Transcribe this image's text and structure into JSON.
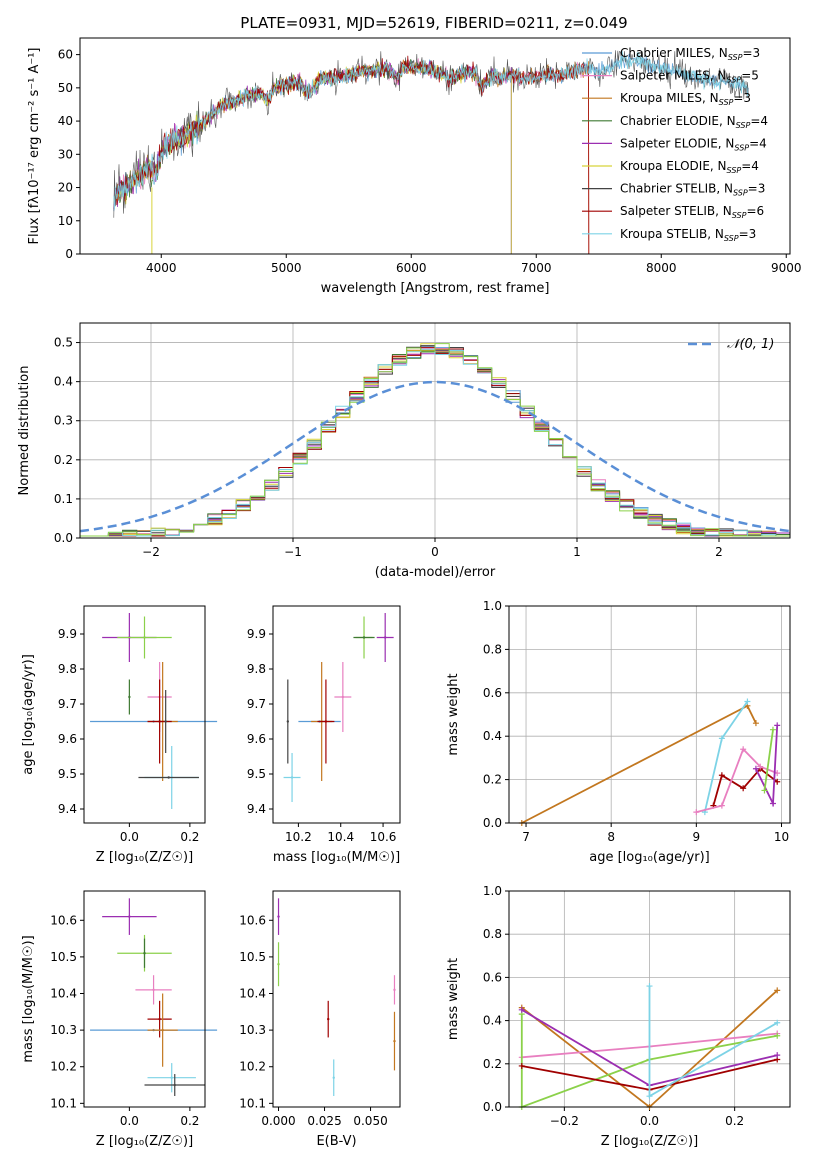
{
  "figure_title": "PLATE=0931, MJD=52619, FIBERID=0211, z=0.049",
  "palette": [
    "#5a9bd5",
    "#e87fc0",
    "#c2771f",
    "#3f7a33",
    "#9b2eb1",
    "#d8d33a",
    "#444444",
    "#a00000",
    "#7dd3e6",
    "#8bd14a"
  ],
  "chart_data": [
    {
      "type": "line",
      "title": "PLATE=0931, MJD=52619, FIBERID=0211, z=0.049",
      "xlabel": "wavelength [Angstrom, rest frame]",
      "ylabel": "Flux [fλ10⁻¹⁷ erg cm⁻² s⁻¹ A⁻¹]",
      "xlim": [
        3350,
        9030
      ],
      "ylim": [
        0,
        65
      ],
      "xticks": [
        4000,
        5000,
        6000,
        7000,
        8000,
        9000
      ],
      "yticks": [
        0,
        10,
        20,
        30,
        40,
        50,
        60
      ],
      "grid": false,
      "legend_position": "right",
      "spectrum_anchor": {
        "wavelength": [
          3620,
          3700,
          3800,
          3900,
          3960,
          4000,
          4100,
          4200,
          4300,
          4400,
          4500,
          4600,
          4700,
          4800,
          4860,
          4900,
          5000,
          5100,
          5175,
          5250,
          5300,
          5400,
          5500,
          5600,
          5700,
          5800,
          5893,
          5950,
          6000,
          6100,
          6200,
          6300,
          6400,
          6500,
          6563,
          6650,
          6700,
          6800,
          6900,
          7000,
          7100,
          7200,
          7300,
          7400,
          7500,
          7600,
          7700,
          7800,
          7900,
          8000,
          8100,
          8200,
          8300,
          8400,
          8500,
          8600,
          8700
        ],
        "flux": [
          17,
          20,
          23,
          26,
          24,
          31,
          34,
          36,
          38,
          42,
          45,
          46,
          48,
          48,
          46,
          50,
          51,
          52,
          48,
          52,
          53,
          53,
          54,
          55,
          55,
          56,
          53,
          57,
          56,
          56,
          55,
          53,
          54,
          55,
          50,
          54,
          53,
          54,
          53,
          53,
          54,
          54,
          55,
          56,
          55,
          56,
          59,
          58,
          57,
          56,
          55,
          54,
          53,
          52,
          52,
          51,
          50
        ]
      },
      "series": [
        {
          "name": "Chabrier MILES, N_SSP=3",
          "cutoff": 9000
        },
        {
          "name": "Salpeter MILES, N_SSP=5",
          "cutoff": 7420
        },
        {
          "name": "Kroupa MILES, N_SSP=3",
          "cutoff": 7420
        },
        {
          "name": "Chabrier ELODIE, N_SSP=4",
          "cutoff": 6800
        },
        {
          "name": "Salpeter ELODIE, N_SSP=4",
          "cutoff": 6800
        },
        {
          "name": "Kroupa ELODIE, N_SSP=4",
          "cutoff": 6800
        },
        {
          "name": "Chabrier STELIB, N_SSP=3",
          "cutoff": 9000
        },
        {
          "name": "Salpeter STELIB, N_SSP=6",
          "cutoff": 7420
        },
        {
          "name": "Kroupa STELIB, N_SSP=3",
          "cutoff": 9000
        }
      ]
    },
    {
      "type": "histogram",
      "xlabel": "(data-model)/error",
      "ylabel": "Normed distribution",
      "xlim": [
        -2.5,
        2.5
      ],
      "ylim": [
        0,
        0.55
      ],
      "xticks": [
        -2,
        -1,
        0,
        1,
        2
      ],
      "yticks": [
        0.0,
        0.1,
        0.2,
        0.3,
        0.4,
        0.5
      ],
      "grid": true,
      "bin_width": 0.1,
      "legend": "𝒩(0, 1)",
      "legend_position": "top-right"
    },
    {
      "type": "scatter",
      "xlabel": "Z [log₁₀(Z/Z☉)]",
      "ylabel": "age  [log₁₀(age/yr)]",
      "xlim": [
        -0.15,
        0.25
      ],
      "ylim": [
        9.36,
        9.98
      ],
      "xticks": [
        "0.0",
        "0.2"
      ],
      "xtick_values": [
        0.0,
        0.2
      ],
      "yticks": [
        "9.4",
        "9.5",
        "9.6",
        "9.7",
        "9.8",
        "9.9"
      ],
      "ytick_values": [
        9.4,
        9.5,
        9.6,
        9.7,
        9.8,
        9.9
      ],
      "grid": false,
      "points": [
        {
          "x": 0.0,
          "y": 9.89,
          "xerr": 0.09,
          "yerr": 0.07,
          "color": 4
        },
        {
          "x": 0.05,
          "y": 9.89,
          "xerr": 0.09,
          "yerr": 0.06,
          "color": 9
        },
        {
          "x": 0.0,
          "y": 9.72,
          "xerr": 0.0,
          "yerr": 0.05,
          "color": 3
        },
        {
          "x": 0.1,
          "y": 9.72,
          "xerr": 0.04,
          "yerr": 0.1,
          "color": 1
        },
        {
          "x": 0.08,
          "y": 9.65,
          "xerr": 0.21,
          "yerr": 0.0,
          "color": 0
        },
        {
          "x": 0.11,
          "y": 9.65,
          "xerr": 0.05,
          "yerr": 0.17,
          "color": 2
        },
        {
          "x": 0.1,
          "y": 9.65,
          "xerr": 0.04,
          "yerr": 0.12,
          "color": 7
        },
        {
          "x": 0.12,
          "y": 9.65,
          "xerr": 0.0,
          "yerr": 0.09,
          "color": 6
        },
        {
          "x": 0.14,
          "y": 9.49,
          "xerr": 0.09,
          "yerr": 0.09,
          "color": 8
        },
        {
          "x": 0.13,
          "y": 9.49,
          "xerr": 0.1,
          "yerr": 0.0,
          "color": 6
        }
      ]
    },
    {
      "type": "scatter",
      "xlabel": "mass [log₁₀(M/M☉)]",
      "ylabel": "",
      "xlim": [
        10.08,
        10.68
      ],
      "ylim": [
        9.36,
        9.98
      ],
      "xticks": [
        "10.2",
        "10.4",
        "10.6"
      ],
      "xtick_values": [
        10.2,
        10.4,
        10.6
      ],
      "yticks": [
        "9.4",
        "9.5",
        "9.6",
        "9.7",
        "9.8",
        "9.9"
      ],
      "ytick_values": [
        9.4,
        9.5,
        9.6,
        9.7,
        9.8,
        9.9
      ],
      "grid": false,
      "points": [
        {
          "x": 10.61,
          "y": 9.89,
          "xerr": 0.04,
          "yerr": 0.07,
          "color": 4
        },
        {
          "x": 10.51,
          "y": 9.89,
          "xerr": 0.04,
          "yerr": 0.06,
          "color": 9
        },
        {
          "x": 10.51,
          "y": 9.89,
          "xerr": 0.05,
          "yerr": 0.0,
          "color": 3
        },
        {
          "x": 10.41,
          "y": 9.72,
          "xerr": 0.04,
          "yerr": 0.1,
          "color": 1
        },
        {
          "x": 10.3,
          "y": 9.65,
          "xerr": 0.1,
          "yerr": 0.0,
          "color": 0
        },
        {
          "x": 10.31,
          "y": 9.65,
          "xerr": 0.05,
          "yerr": 0.17,
          "color": 2
        },
        {
          "x": 10.33,
          "y": 9.65,
          "xerr": 0.04,
          "yerr": 0.12,
          "color": 7
        },
        {
          "x": 10.15,
          "y": 9.65,
          "xerr": 0.0,
          "yerr": 0.12,
          "color": 6
        },
        {
          "x": 10.17,
          "y": 9.49,
          "xerr": 0.04,
          "yerr": 0.07,
          "color": 8
        }
      ]
    },
    {
      "type": "line",
      "xlabel": "age  [log₁₀(age/yr)]",
      "ylabel": "mass weight",
      "xlim": [
        6.8,
        10.1
      ],
      "ylim": [
        0,
        1
      ],
      "xticks": [
        "7",
        "8",
        "9",
        "10"
      ],
      "xtick_values": [
        7,
        8,
        9,
        10
      ],
      "yticks": [
        "0.0",
        "0.2",
        "0.4",
        "0.6",
        "0.8",
        "1.0"
      ],
      "ytick_values": [
        0,
        0.2,
        0.4,
        0.6,
        0.8,
        1.0
      ],
      "grid": true,
      "series": [
        {
          "color": 2,
          "x": [
            6.95,
            9.6,
            9.7
          ],
          "y": [
            0.0,
            0.54,
            0.46
          ]
        },
        {
          "color": 8,
          "x": [
            9.1,
            9.3,
            9.6
          ],
          "y": [
            0.05,
            0.39,
            0.56
          ]
        },
        {
          "color": 7,
          "x": [
            9.2,
            9.3,
            9.55,
            9.75,
            9.95
          ],
          "y": [
            0.08,
            0.22,
            0.16,
            0.25,
            0.19
          ]
        },
        {
          "color": 1,
          "x": [
            9.0,
            9.3,
            9.55,
            9.75,
            9.95
          ],
          "y": [
            0.05,
            0.08,
            0.34,
            0.26,
            0.23
          ]
        },
        {
          "color": 4,
          "x": [
            9.7,
            9.9,
            9.95
          ],
          "y": [
            0.25,
            0.09,
            0.45
          ]
        },
        {
          "color": 9,
          "x": [
            9.8,
            9.9
          ],
          "y": [
            0.15,
            0.43
          ]
        }
      ]
    },
    {
      "type": "scatter",
      "xlabel": "Z [log₁₀(Z/Z☉)]",
      "ylabel": "mass [log₁₀(M/M☉)]",
      "xlim": [
        -0.15,
        0.25
      ],
      "ylim": [
        10.09,
        10.68
      ],
      "xticks": [
        "0.0",
        "0.2"
      ],
      "xtick_values": [
        0.0,
        0.2
      ],
      "yticks": [
        "10.1",
        "10.2",
        "10.3",
        "10.4",
        "10.5",
        "10.6"
      ],
      "ytick_values": [
        10.1,
        10.2,
        10.3,
        10.4,
        10.5,
        10.6
      ],
      "grid": false,
      "points": [
        {
          "x": 0.0,
          "y": 10.61,
          "xerr": 0.09,
          "yerr": 0.05,
          "color": 4
        },
        {
          "x": 0.05,
          "y": 10.51,
          "xerr": 0.09,
          "yerr": 0.05,
          "color": 9
        },
        {
          "x": 0.05,
          "y": 10.51,
          "xerr": 0.0,
          "yerr": 0.04,
          "color": 3
        },
        {
          "x": 0.08,
          "y": 10.41,
          "xerr": 0.06,
          "yerr": 0.04,
          "color": 1
        },
        {
          "x": 0.1,
          "y": 10.33,
          "xerr": 0.04,
          "yerr": 0.05,
          "color": 7
        },
        {
          "x": 0.08,
          "y": 10.3,
          "xerr": 0.21,
          "yerr": 0.0,
          "color": 0
        },
        {
          "x": 0.11,
          "y": 10.3,
          "xerr": 0.05,
          "yerr": 0.1,
          "color": 2
        },
        {
          "x": 0.14,
          "y": 10.17,
          "xerr": 0.08,
          "yerr": 0.04,
          "color": 8
        },
        {
          "x": 0.15,
          "y": 10.15,
          "xerr": 0.1,
          "yerr": 0.03,
          "color": 6
        }
      ]
    },
    {
      "type": "scatter",
      "xlabel": "E(B-V)",
      "ylabel": "",
      "xlim": [
        -0.003,
        0.066
      ],
      "ylim": [
        10.09,
        10.68
      ],
      "xticks": [
        "0.000",
        "0.025",
        "0.050"
      ],
      "xtick_values": [
        0.0,
        0.025,
        0.05
      ],
      "yticks": [
        "10.1",
        "10.2",
        "10.3",
        "10.4",
        "10.5",
        "10.6"
      ],
      "ytick_values": [
        10.1,
        10.2,
        10.3,
        10.4,
        10.5,
        10.6
      ],
      "grid": false,
      "points": [
        {
          "x": 0.0,
          "y": 10.61,
          "xerr": 0.0,
          "yerr": 0.05,
          "color": 4
        },
        {
          "x": 0.0,
          "y": 10.48,
          "xerr": 0.0,
          "yerr": 0.06,
          "color": 9
        },
        {
          "x": 0.027,
          "y": 10.33,
          "xerr": 0.0,
          "yerr": 0.05,
          "color": 7
        },
        {
          "x": 0.03,
          "y": 10.17,
          "xerr": 0.0,
          "yerr": 0.05,
          "color": 8
        },
        {
          "x": 0.063,
          "y": 10.41,
          "xerr": 0.0,
          "yerr": 0.04,
          "color": 1
        },
        {
          "x": 0.063,
          "y": 10.27,
          "xerr": 0.0,
          "yerr": 0.08,
          "color": 2
        }
      ]
    },
    {
      "type": "line",
      "xlabel": "Z [log₁₀(Z/Z☉)]",
      "ylabel": "mass weight",
      "xlim": [
        -0.33,
        0.33
      ],
      "ylim": [
        0,
        1
      ],
      "xticks": [
        "−0.2",
        "0.0",
        "0.2"
      ],
      "xtick_values": [
        -0.2,
        0.0,
        0.2
      ],
      "yticks": [
        "0.0",
        "0.2",
        "0.4",
        "0.6",
        "0.8",
        "1.0"
      ],
      "ytick_values": [
        0,
        0.2,
        0.4,
        0.6,
        0.8,
        1.0
      ],
      "grid": true,
      "series": [
        {
          "color": 2,
          "x": [
            -0.3,
            0.0,
            0.3
          ],
          "y": [
            0.46,
            0.0,
            0.54
          ]
        },
        {
          "color": 1,
          "x": [
            -0.3,
            0.0,
            0.3
          ],
          "y": [
            0.23,
            0.28,
            0.34
          ]
        },
        {
          "color": 9,
          "x": [
            -0.3,
            -0.3,
            0.0,
            0.3
          ],
          "y": [
            0.43,
            0.0,
            0.22,
            0.33
          ]
        },
        {
          "color": 7,
          "x": [
            -0.3,
            0.0,
            0.3
          ],
          "y": [
            0.19,
            0.08,
            0.22
          ]
        },
        {
          "color": 4,
          "x": [
            -0.3,
            0.0,
            0.3
          ],
          "y": [
            0.45,
            0.1,
            0.24
          ]
        },
        {
          "color": 8,
          "x": [
            0.0,
            0.0,
            0.3
          ],
          "y": [
            0.56,
            0.05,
            0.39
          ]
        }
      ]
    }
  ]
}
